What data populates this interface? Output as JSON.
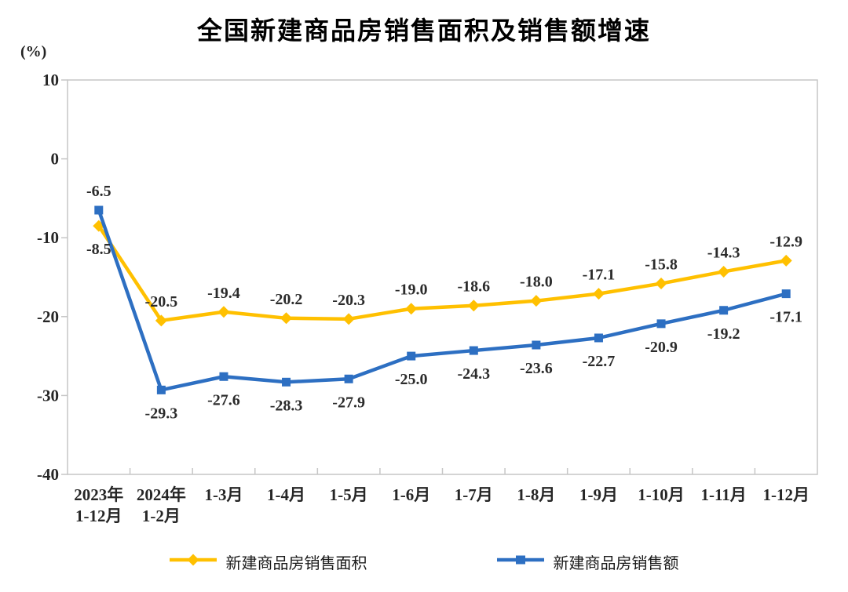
{
  "chart_data": {
    "type": "line",
    "title": "全国新建商品房销售面积及销售额增速",
    "ylabel": "(%)",
    "xlabel": "",
    "ylim": [
      -40,
      10
    ],
    "yticks": [
      10,
      0,
      -10,
      -20,
      -30,
      -40
    ],
    "grid": false,
    "legend_position": "bottom",
    "decimals": 1,
    "categories": [
      [
        "2023年",
        "1-12月"
      ],
      [
        "2024年",
        "1-2月"
      ],
      "1-3月",
      "1-4月",
      "1-5月",
      "1-6月",
      "1-7月",
      "1-8月",
      "1-9月",
      "1-10月",
      "1-11月",
      "1-12月"
    ],
    "series": [
      {
        "name": "新建商品房销售面积",
        "marker": "diamond",
        "color": "#FFC000",
        "values": [
          -8.5,
          -20.5,
          -19.4,
          -20.2,
          -20.3,
          -19.0,
          -18.6,
          -18.0,
          -17.1,
          -15.8,
          -14.3,
          -12.9
        ]
      },
      {
        "name": "新建商品房销售额",
        "marker": "square",
        "color": "#2D6FC2",
        "values": [
          -6.5,
          -29.3,
          -27.6,
          -28.3,
          -27.9,
          -25.0,
          -24.3,
          -23.6,
          -22.7,
          -20.9,
          -19.2,
          -17.1
        ]
      }
    ],
    "style": {
      "axis_color": "#C6C6C6",
      "tick_label_color": "#262626",
      "data_label_color": "#2b2b2b",
      "title_color": "#000000"
    }
  }
}
